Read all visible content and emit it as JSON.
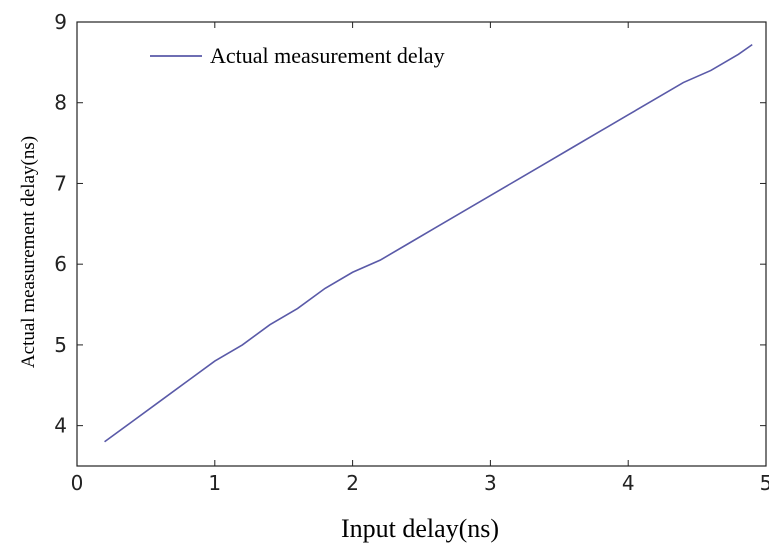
{
  "chart_data": {
    "type": "line",
    "x_label": "Input delay(ns)",
    "y_label": "Actual measurement delay(ns)",
    "x": [
      0.2,
      0.4,
      0.6,
      0.8,
      1.0,
      1.2,
      1.4,
      1.6,
      1.8,
      2.0,
      2.2,
      2.4,
      2.6,
      2.8,
      3.0,
      3.2,
      3.4,
      3.6,
      3.8,
      4.0,
      4.2,
      4.4,
      4.6,
      4.8,
      4.9
    ],
    "series": [
      {
        "name": "Actual measurement delay",
        "color": "#5a5aa8",
        "values": [
          3.8,
          4.05,
          4.3,
          4.55,
          4.8,
          5.0,
          5.25,
          5.45,
          5.7,
          5.9,
          6.05,
          6.25,
          6.45,
          6.65,
          6.85,
          7.05,
          7.25,
          7.45,
          7.65,
          7.85,
          8.05,
          8.25,
          8.4,
          8.6,
          8.72
        ]
      }
    ],
    "xlim": [
      0,
      5
    ],
    "xticks": [
      0,
      1,
      2,
      3,
      4,
      5
    ],
    "ylim": [
      3.5,
      9
    ],
    "yticks": [
      4,
      5,
      6,
      7,
      8,
      9
    ],
    "legend": "upper left",
    "grid": false
  }
}
